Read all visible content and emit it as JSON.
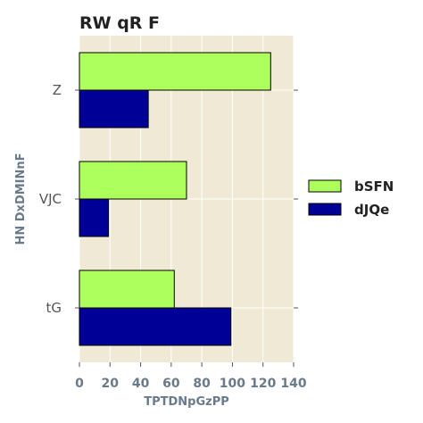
{
  "chart_data": {
    "type": "bar",
    "orientation": "horizontal",
    "title": "RW qR F",
    "xlabel": "TPTDNpGzPP",
    "ylabel": "HN DxDMINnF",
    "categories": [
      "Z",
      "VJC",
      "tG"
    ],
    "series": [
      {
        "name": "bSFN",
        "color": "#adff5c",
        "values": [
          125,
          70,
          62
        ]
      },
      {
        "name": "dJQe",
        "color": "#000096",
        "values": [
          45,
          19,
          99
        ]
      }
    ],
    "xlim": [
      0,
      140
    ],
    "xticks": [
      "0",
      "20",
      "40",
      "60",
      "80",
      "100",
      "120",
      "140"
    ],
    "grid": true,
    "legend": "right",
    "background": "#efe9d6"
  }
}
